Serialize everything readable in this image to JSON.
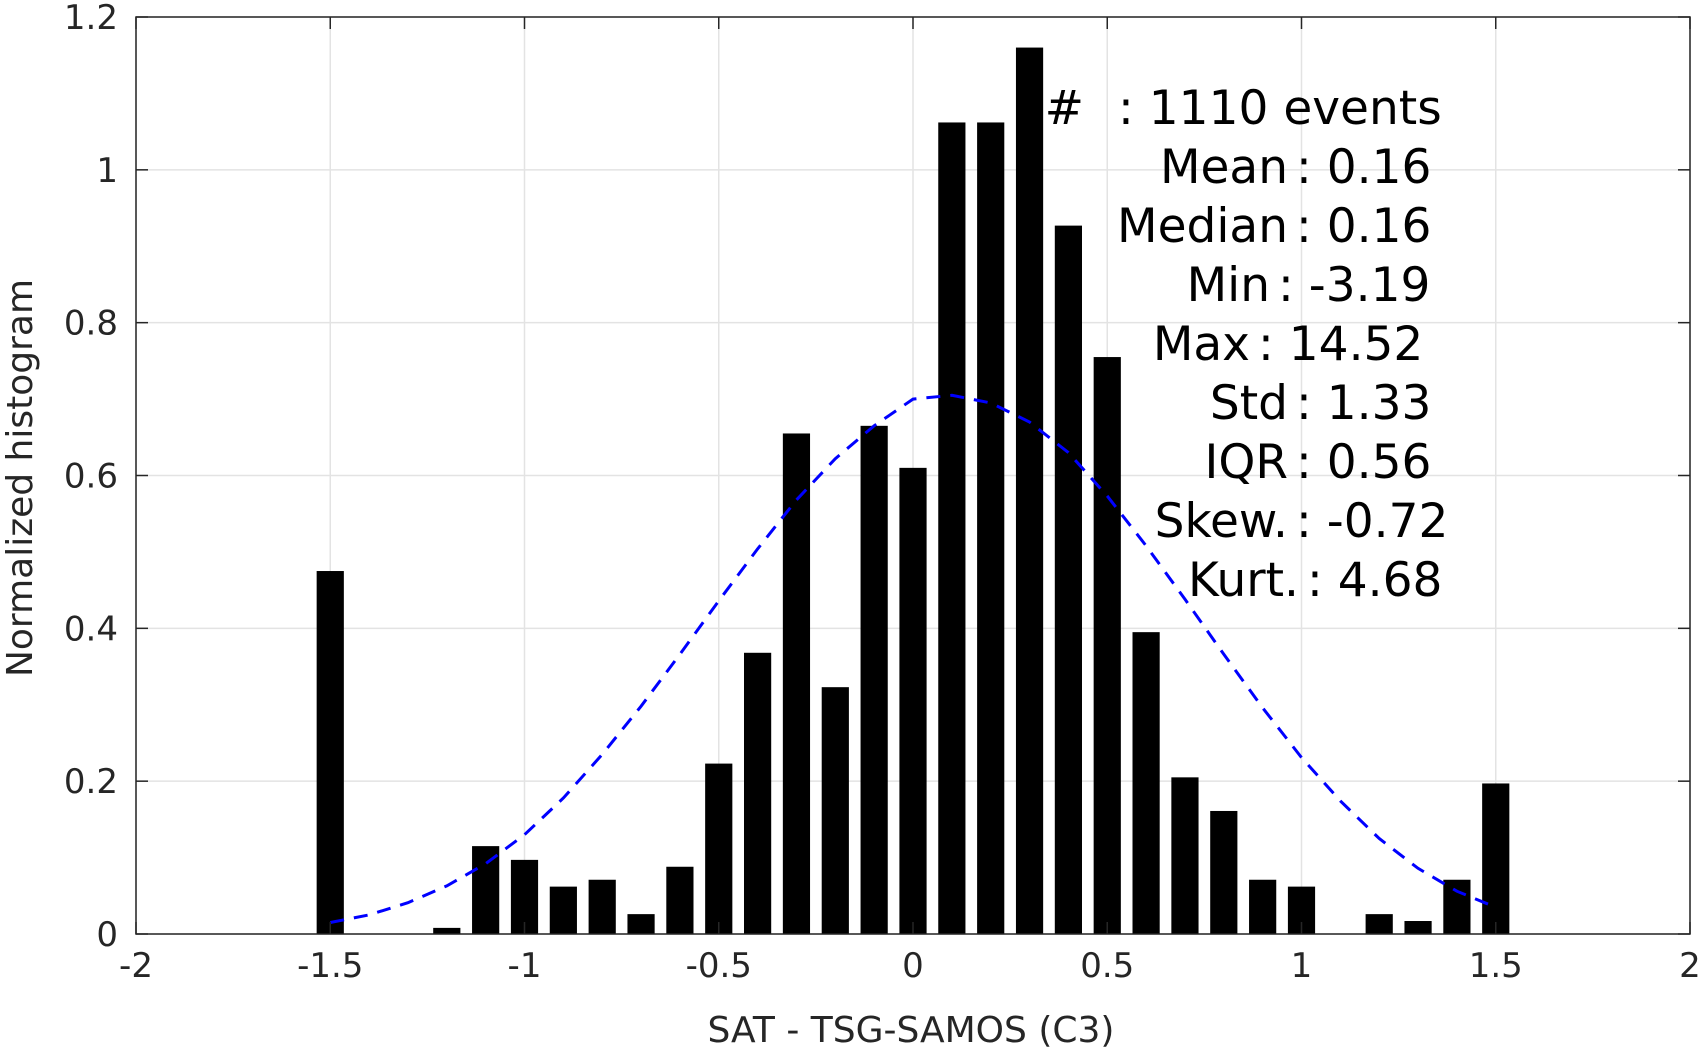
{
  "chart_data": {
    "type": "bar",
    "xlabel": "SAT - TSG-SAMOS (C3)",
    "ylabel": "Normalized histogram",
    "xlim": [
      -2,
      2
    ],
    "ylim": [
      0,
      1.2
    ],
    "grid": true,
    "x_ticks": [
      -2,
      -1.5,
      -1,
      -0.5,
      0,
      0.5,
      1,
      1.5,
      2
    ],
    "x_tick_labels": [
      "-2",
      "-1.5",
      "-1",
      "-0.5",
      "0",
      "0.5",
      "1",
      "1.5",
      "2"
    ],
    "y_ticks": [
      0,
      0.2,
      0.4,
      0.6,
      0.8,
      1,
      1.2
    ],
    "y_tick_labels": [
      "0",
      "0.2",
      "0.4",
      "0.6",
      "0.8",
      "1",
      "1.2"
    ],
    "bar_color": "#000000",
    "bar_width": 0.07,
    "bars": {
      "x": [
        -1.5,
        -1.2,
        -1.1,
        -1.0,
        -0.9,
        -0.8,
        -0.7,
        -0.6,
        -0.5,
        -0.4,
        -0.3,
        -0.2,
        -0.1,
        0.0,
        0.1,
        0.2,
        0.3,
        0.4,
        0.5,
        0.6,
        0.7,
        0.8,
        0.9,
        1.0,
        1.2,
        1.3,
        1.4,
        1.5
      ],
      "values": [
        0.475,
        0.008,
        0.115,
        0.097,
        0.062,
        0.071,
        0.026,
        0.088,
        0.223,
        0.368,
        0.655,
        0.323,
        0.665,
        0.61,
        1.062,
        1.062,
        1.16,
        0.927,
        0.755,
        0.395,
        0.205,
        0.161,
        0.071,
        0.062,
        0.026,
        0.017,
        0.071,
        0.197
      ]
    },
    "fit_curve": {
      "style": "dashed",
      "color": "#0000ff",
      "x": [
        -1.5,
        -1.4,
        -1.3,
        -1.2,
        -1.1,
        -1.0,
        -0.9,
        -0.8,
        -0.7,
        -0.6,
        -0.5,
        -0.4,
        -0.3,
        -0.2,
        -0.1,
        0.0,
        0.1,
        0.2,
        0.3,
        0.4,
        0.5,
        0.6,
        0.7,
        0.8,
        0.9,
        1.0,
        1.1,
        1.2,
        1.3,
        1.4,
        1.5
      ],
      "values": [
        0.015,
        0.025,
        0.041,
        0.063,
        0.092,
        0.13,
        0.178,
        0.235,
        0.298,
        0.366,
        0.436,
        0.504,
        0.568,
        0.622,
        0.665,
        0.7,
        0.705,
        0.695,
        0.67,
        0.63,
        0.573,
        0.508,
        0.438,
        0.366,
        0.296,
        0.231,
        0.174,
        0.125,
        0.086,
        0.056,
        0.035
      ]
    },
    "annotations": [
      {
        "label": "#",
        "value": ": 1110 events"
      },
      {
        "label": "Mean",
        "value": ": 0.16"
      },
      {
        "label": "Median",
        "value": ": 0.16"
      },
      {
        "label": "Min",
        "value": ": -3.19"
      },
      {
        "label": "Max",
        "value": ": 14.52"
      },
      {
        "label": "Std",
        "value": ": 1.33"
      },
      {
        "label": "IQR",
        "value": ": 0.56"
      },
      {
        "label": "Skew.",
        "value": ": -0.72"
      },
      {
        "label": "Kurt.",
        "value": ": 4.68"
      }
    ]
  }
}
